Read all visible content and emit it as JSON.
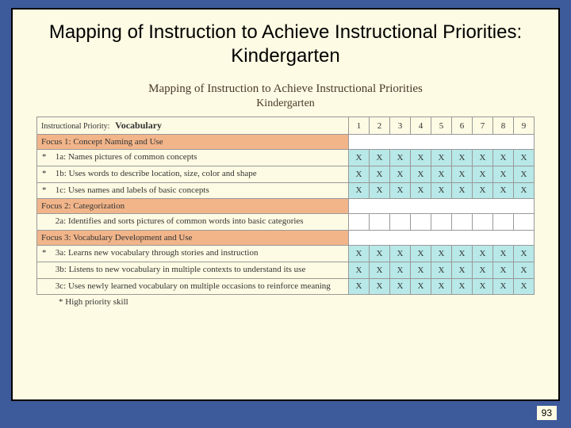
{
  "slide_title": "Mapping of Instruction to Achieve Instructional Priorities: Kindergarten",
  "chart": {
    "title": "Mapping of Instruction to Achieve Instructional Priorities",
    "subtitle": "Kindergarten",
    "priority_label": "Instructional Priority:",
    "priority_value": "Vocabulary",
    "columns": [
      "1",
      "2",
      "3",
      "4",
      "5",
      "6",
      "7",
      "8",
      "9"
    ],
    "focus1": "Focus 1: Concept Naming and Use",
    "focus2": "Focus 2: Categorization",
    "focus3": "Focus 3: Vocabulary Development and Use",
    "row_1a": {
      "star": "*",
      "code": "1a:",
      "text": "Names pictures of common concepts",
      "marks": [
        "X",
        "X",
        "X",
        "X",
        "X",
        "X",
        "X",
        "X",
        "X"
      ]
    },
    "row_1b": {
      "star": "*",
      "code": "1b:",
      "text": "Uses words to describe location, size, color and shape",
      "marks": [
        "X",
        "X",
        "X",
        "X",
        "X",
        "X",
        "X",
        "X",
        "X"
      ]
    },
    "row_1c": {
      "star": "*",
      "code": "1c:",
      "text": "Uses names and labels of basic concepts",
      "marks": [
        "X",
        "X",
        "X",
        "X",
        "X",
        "X",
        "X",
        "X",
        "X"
      ]
    },
    "row_2a": {
      "star": "",
      "code": "2a:",
      "text": "Identifies and sorts pictures of common words into basic categories",
      "marks": [
        "",
        "",
        "",
        "",
        "",
        "",
        "",
        "",
        ""
      ]
    },
    "row_3a": {
      "star": "*",
      "code": "3a:",
      "text": "Learns new vocabulary through stories and instruction",
      "marks": [
        "X",
        "X",
        "X",
        "X",
        "X",
        "X",
        "X",
        "X",
        "X"
      ]
    },
    "row_3b": {
      "star": "",
      "code": "3b:",
      "text": "Listens to new vocabulary in multiple contexts to understand its use",
      "marks": [
        "X",
        "X",
        "X",
        "X",
        "X",
        "X",
        "X",
        "X",
        "X"
      ]
    },
    "row_3c": {
      "star": "",
      "code": "3c:",
      "text": "Uses newly learned vocabulary on multiple occasions to reinforce meaning",
      "marks": [
        "X",
        "X",
        "X",
        "X",
        "X",
        "X",
        "X",
        "X",
        "X"
      ]
    },
    "footnote": "* High priority skill"
  },
  "page_number": "93"
}
